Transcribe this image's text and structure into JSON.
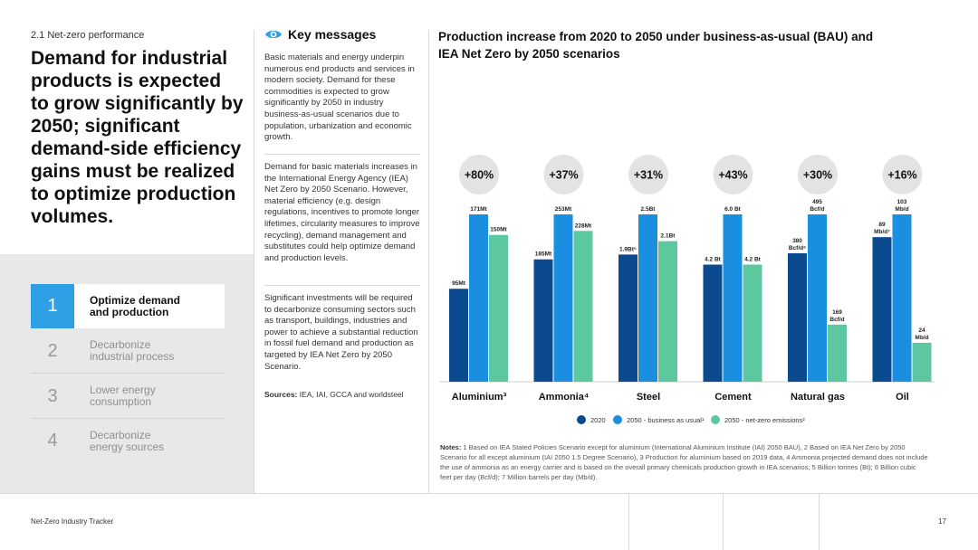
{
  "section_label": "2.1  Net-zero performance",
  "headline": "Demand for industrial products is expected to grow significantly by 2050; significant demand-side efficiency gains must be realized to optimize production volumes.",
  "nav": [
    {
      "num": "1",
      "label": "Optimize demand\nand production",
      "active": true
    },
    {
      "num": "2",
      "label": "Decarbonize\nindustrial process",
      "active": false
    },
    {
      "num": "3",
      "label": "Lower energy\nconsumption",
      "active": false
    },
    {
      "num": "4",
      "label": "Decarbonize\nenergy sources",
      "active": false
    }
  ],
  "key_messages": {
    "title": "Key messages",
    "p1": "Basic materials and energy underpin numerous end products and services in modern society. Demand for these commodities is expected to grow significantly by 2050 in industry business-as-usual scenarios due to population, urbanization and economic growth.",
    "p2": "Demand for basic materials increases in the International Energy Agency (IEA) Net Zero by 2050 Scenario. However, material efficiency (e.g. design regulations, incentives to promote longer lifetimes, circularity measures to improve recycling), demand management and substitutes could help optimize demand and production levels.",
    "p3": "Significant investments will be required to decarbonize consuming sectors such as transport, buildings, industries and power to achieve a substantial reduction in fossil fuel demand and production as targeted by IEA Net Zero by 2050 Scenario.",
    "sources_label": "Sources:",
    "sources_text": "IEA, IAI, GCCA and worldsteel"
  },
  "chart_title": "Production increase from 2020 to 2050 under business-as-usual (BAU) and IEA Net Zero by 2050 scenarios",
  "chart_data": {
    "type": "bar",
    "categories": [
      "Aluminium³",
      "Ammonia⁴",
      "Steel",
      "Cement",
      "Natural gas",
      "Oil"
    ],
    "increase_labels": [
      "+80%",
      "+37%",
      "+31%",
      "+43%",
      "+30%",
      "+16%"
    ],
    "series": [
      {
        "name": "2020",
        "color": "#0b4a8f",
        "values": [
          95,
          185,
          1.9,
          4.2,
          380,
          89
        ],
        "labels": [
          "95Mt",
          "185Mt",
          "1.9Bt⁵",
          "4.2 Bt",
          "380 Bcf/d⁶",
          "89 Mb/d⁷"
        ]
      },
      {
        "name": "2050 - business as usual¹",
        "color": "#1a8fe0",
        "values": [
          171,
          253,
          2.5,
          6.0,
          495,
          103
        ],
        "labels": [
          "171Mt",
          "253Mt",
          "2.5Bt",
          "6.0 Bt",
          "495 Bcf/d",
          "103 Mb/d"
        ]
      },
      {
        "name": "2050 - net-zero emissions²",
        "color": "#5dc8a0",
        "values": [
          150,
          228,
          2.1,
          4.2,
          169,
          24
        ],
        "labels": [
          "150Mt",
          "228Mt",
          "2.1Bt",
          "4.2 Bt",
          "169 Bcf/d",
          "24 Mb/d"
        ]
      }
    ],
    "legend_position": "bottom",
    "scaling": "each category independently normalized"
  },
  "notes": {
    "label": "Notes:",
    "text": " 1 Based on IEA Stated Policies Scenario except for aluminium (International Aluminium Institute (IAI) 2050 BAU), 2 Based on IEA Net Zero by 2050 Scenario for all except aluminium (IAI 2050 1.5 Degree Scenario), 3 Production for aluminium based on 2019 data, 4 Ammonia projected demand does not include the use of ammonia as an energy carrier and is based on the overall primary chemicals production growth in IEA scenarios; 5 Billion tonnes (Bt); 6 Billion cubic feet per day (Bcf/d); 7 Million barrels per day (Mb/d)."
  },
  "footer": {
    "title": "Net-Zero Industry Tracker",
    "page": "17"
  }
}
